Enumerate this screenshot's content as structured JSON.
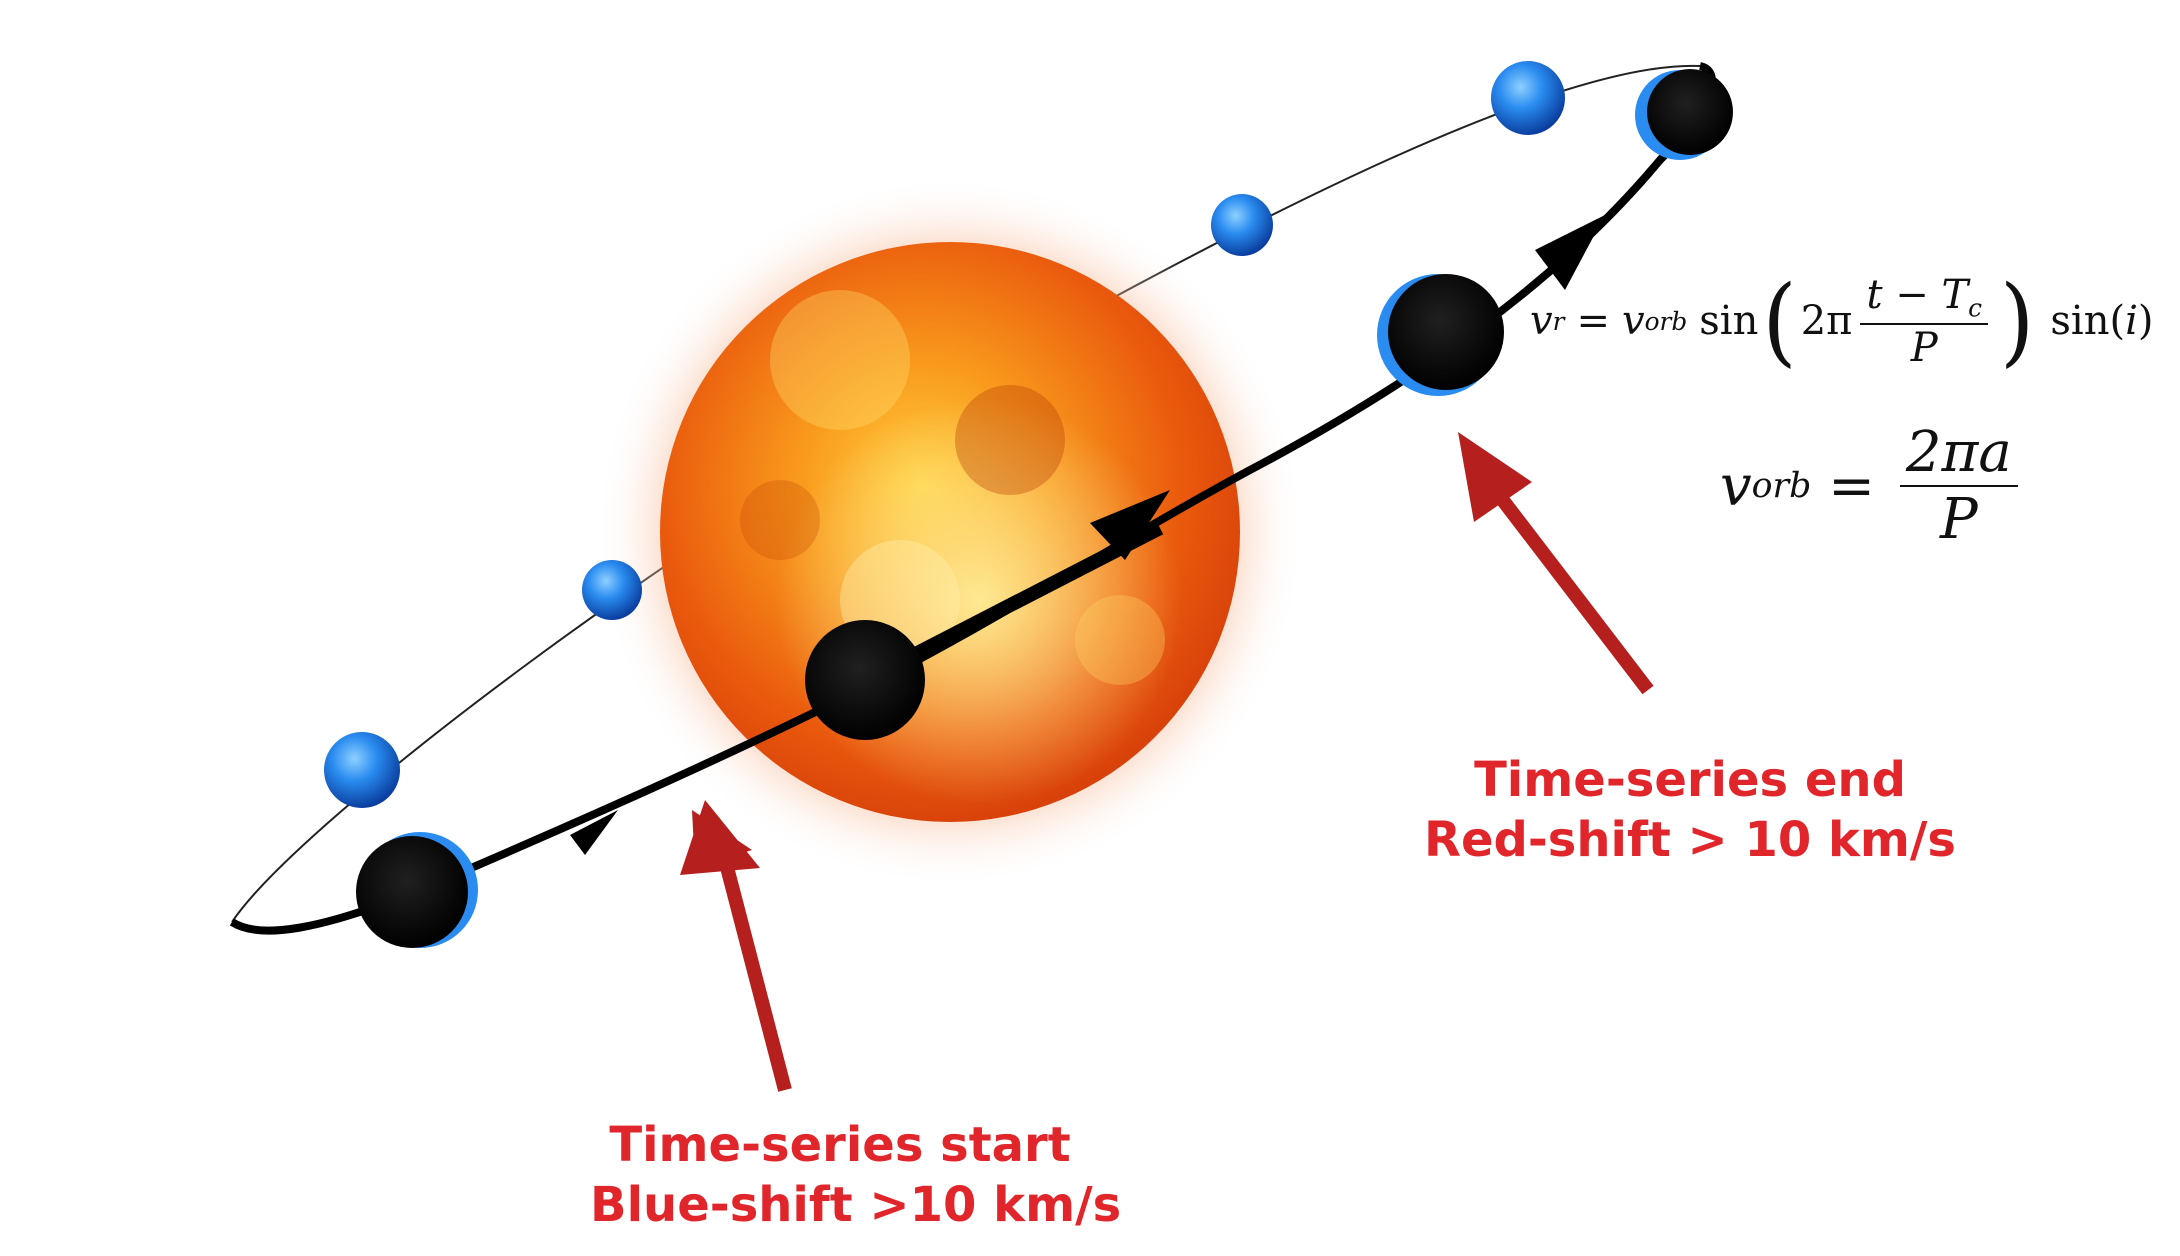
{
  "labels": {
    "start_line1": "Time-series start",
    "start_line2": "Blue-shift >10 km/s",
    "end_line1": "Time-series end",
    "end_line2": "Red-shift > 10 km/s"
  },
  "equations": {
    "vr": {
      "lhs_var": "v",
      "lhs_sub": "r",
      "eq": "=",
      "vorb_var": "v",
      "vorb_sub": "orb",
      "sin": "sin",
      "two_pi": "2π",
      "num_t": "t",
      "minus": "−",
      "num_T": "T",
      "num_T_sub": "c",
      "den": "P",
      "sin_i": "sin(",
      "i": "i",
      "close": ")"
    },
    "vorb": {
      "lhs_var": "v",
      "lhs_sub": "orb",
      "eq": "=",
      "num": "2πa",
      "den": "P"
    }
  },
  "colors": {
    "label_red": "#e0262b",
    "arrow_red": "#b5201f",
    "planet_blue": "#2a8cf0",
    "orbit_black": "#000000",
    "sun_core": "#f26a10",
    "sun_edge": "#ffb070"
  },
  "icons": {
    "star": "sun-icon",
    "planet": "planet-icon"
  }
}
